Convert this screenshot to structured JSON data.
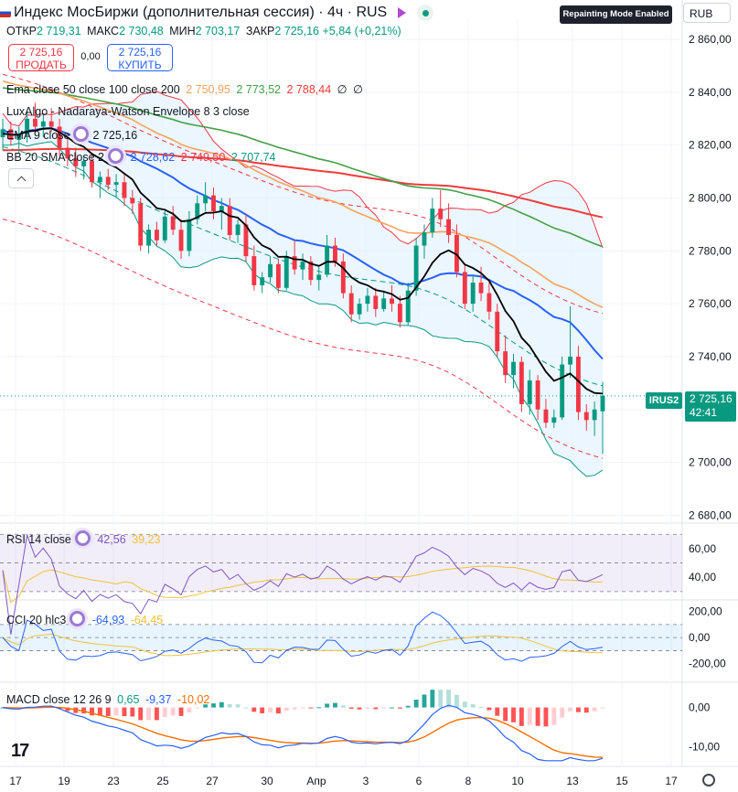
{
  "header": {
    "title": "Индекс МосБиржи (дополнительная сессия) · 4ч · RUS",
    "badge": "Repainting Mode Enabled",
    "currency": "RUB",
    "ohlc": {
      "open_label": "ОТКР",
      "open": "2 719,31",
      "high_label": "МАКС",
      "high": "2 730,48",
      "low_label": "МИН",
      "low": "2 703,17",
      "close_label": "ЗАКР",
      "close": "2 725,16",
      "change": "+5,84 (+0,21%)"
    }
  },
  "trade": {
    "sell_price": "2 725,16",
    "sell_label": "ПРОДАТЬ",
    "spread": "0,00",
    "buy_price": "2 725,16",
    "buy_label": "КУПИТЬ"
  },
  "legends": {
    "ema_multi": {
      "label": "Ema close 50 close 100 close 200",
      "v1": "2 750,95",
      "v2": "2 773,52",
      "v3": "2 788,44",
      "v4": "∅",
      "v5": "∅"
    },
    "luxalgo": {
      "label": "LuxAlgo - Nadaraya-Watson Envelope 8 3 close"
    },
    "ema9": {
      "label": "EMA 9 close",
      "value": "2 725,16"
    },
    "bb": {
      "label": "BB 20 SMA close 2",
      "v1": "2 728,62",
      "v2": "2 749,50",
      "v3": "2 707,74"
    },
    "rsi": {
      "label": "RSI 14 close",
      "v1": "42,56",
      "v2": "39,23"
    },
    "cci": {
      "label": "CCI 20 hlc3",
      "v1": "-64,93",
      "v2": "-64,45"
    },
    "macd": {
      "label": "MACD close 12 26 9",
      "v1": "0,65",
      "v2": "-9,37",
      "v3": "-10,02"
    }
  },
  "price_tag": {
    "symbol": "IRUS2",
    "price": "2 725,16",
    "countdown": "42:41"
  },
  "colors": {
    "up": "#089981",
    "down": "#f23645",
    "ema9": "#000000",
    "ema50": "#f7a25c",
    "ema100": "#43a047",
    "ema200": "#ef3b3b",
    "bb_basis": "#2962ff",
    "bb_band": "#089981",
    "nw_envelope": "#f23645",
    "nw_mid": "#089981",
    "rsi": "#7e57c2",
    "cci": "#2962ff",
    "signal": "#f2c13c",
    "macd": "#2962ff",
    "macd_signal": "#ff6d00"
  },
  "chart_data": {
    "type": "candlestick",
    "timeframe": "4ч",
    "y_ticks": [
      "2 860,00",
      "2 840,00",
      "2 820,00",
      "2 800,00",
      "2 780,00",
      "2 760,00",
      "2 740,00",
      "2 720,00",
      "2 700,00",
      "2 680,00"
    ],
    "ylim": [
      2677,
      2868
    ],
    "x_ticks": [
      "17",
      "19",
      "23",
      "25",
      "27",
      "30",
      "Апр",
      "3",
      "6",
      "8",
      "10",
      "13",
      "15",
      "17"
    ],
    "last_price": 2725.16,
    "candles": [
      [
        2823,
        2830,
        2818,
        2826
      ],
      [
        2826,
        2829,
        2820,
        2822
      ],
      [
        2822,
        2827,
        2817,
        2824
      ],
      [
        2824,
        2833,
        2821,
        2830
      ],
      [
        2830,
        2836,
        2825,
        2827
      ],
      [
        2827,
        2832,
        2823,
        2829
      ],
      [
        2829,
        2834,
        2825,
        2827
      ],
      [
        2827,
        2830,
        2816,
        2819
      ],
      [
        2819,
        2823,
        2812,
        2815
      ],
      [
        2815,
        2819,
        2808,
        2812
      ],
      [
        2812,
        2816,
        2807,
        2814
      ],
      [
        2814,
        2816,
        2804,
        2806
      ],
      [
        2806,
        2810,
        2800,
        2808
      ],
      [
        2808,
        2811,
        2803,
        2805
      ],
      [
        2805,
        2809,
        2800,
        2806
      ],
      [
        2806,
        2809,
        2797,
        2800
      ],
      [
        2800,
        2803,
        2794,
        2798
      ],
      [
        2798,
        2800,
        2780,
        2782
      ],
      [
        2782,
        2790,
        2779,
        2788
      ],
      [
        2788,
        2791,
        2782,
        2784
      ],
      [
        2784,
        2795,
        2783,
        2793
      ],
      [
        2793,
        2797,
        2786,
        2788
      ],
      [
        2788,
        2792,
        2777,
        2780
      ],
      [
        2780,
        2795,
        2778,
        2792
      ],
      [
        2792,
        2801,
        2790,
        2798
      ],
      [
        2798,
        2806,
        2795,
        2801
      ],
      [
        2801,
        2804,
        2792,
        2795
      ],
      [
        2795,
        2800,
        2788,
        2797
      ],
      [
        2797,
        2800,
        2784,
        2786
      ],
      [
        2786,
        2792,
        2783,
        2790
      ],
      [
        2790,
        2794,
        2776,
        2778
      ],
      [
        2778,
        2782,
        2765,
        2767
      ],
      [
        2767,
        2772,
        2764,
        2770
      ],
      [
        2770,
        2778,
        2768,
        2775
      ],
      [
        2775,
        2777,
        2764,
        2766
      ],
      [
        2766,
        2780,
        2765,
        2778
      ],
      [
        2778,
        2784,
        2771,
        2773
      ],
      [
        2773,
        2779,
        2769,
        2776
      ],
      [
        2776,
        2778,
        2767,
        2769
      ],
      [
        2769,
        2774,
        2765,
        2771
      ],
      [
        2771,
        2786,
        2770,
        2782
      ],
      [
        2782,
        2785,
        2774,
        2776
      ],
      [
        2776,
        2779,
        2762,
        2764
      ],
      [
        2764,
        2767,
        2753,
        2756
      ],
      [
        2756,
        2762,
        2754,
        2760
      ],
      [
        2760,
        2766,
        2757,
        2763
      ],
      [
        2763,
        2766,
        2755,
        2758
      ],
      [
        2758,
        2765,
        2757,
        2762
      ],
      [
        2762,
        2767,
        2757,
        2760
      ],
      [
        2760,
        2763,
        2751,
        2753
      ],
      [
        2753,
        2768,
        2752,
        2765
      ],
      [
        2765,
        2785,
        2763,
        2782
      ],
      [
        2782,
        2790,
        2777,
        2787
      ],
      [
        2787,
        2800,
        2785,
        2796
      ],
      [
        2796,
        2803,
        2789,
        2792
      ],
      [
        2792,
        2798,
        2783,
        2786
      ],
      [
        2786,
        2790,
        2770,
        2772
      ],
      [
        2772,
        2775,
        2758,
        2760
      ],
      [
        2760,
        2771,
        2757,
        2768
      ],
      [
        2768,
        2774,
        2761,
        2764
      ],
      [
        2764,
        2768,
        2754,
        2757
      ],
      [
        2757,
        2760,
        2740,
        2742
      ],
      [
        2742,
        2748,
        2730,
        2733
      ],
      [
        2733,
        2741,
        2728,
        2738
      ],
      [
        2738,
        2740,
        2719,
        2722
      ],
      [
        2722,
        2735,
        2718,
        2731
      ],
      [
        2731,
        2733,
        2716,
        2720
      ],
      [
        2720,
        2724,
        2713,
        2715
      ],
      [
        2715,
        2720,
        2713,
        2717
      ],
      [
        2717,
        2740,
        2716,
        2737
      ],
      [
        2737,
        2759,
        2732,
        2740
      ],
      [
        2740,
        2744,
        2716,
        2719
      ],
      [
        2719,
        2722,
        2712,
        2716
      ],
      [
        2716,
        2723,
        2710,
        2720
      ],
      [
        2719.31,
        2730.48,
        2703.17,
        2725.16
      ]
    ]
  },
  "rsi_pane": {
    "ticks": [
      "60,00",
      "40,00"
    ],
    "ylim": [
      28,
      74
    ],
    "band": [
      30,
      70
    ],
    "mid": 50
  },
  "cci_pane": {
    "ticks": [
      "200,00",
      "0,00",
      "-200,00"
    ],
    "ylim": [
      -300,
      260
    ],
    "band": [
      -100,
      100
    ]
  },
  "macd_pane": {
    "ticks": [
      "0,00",
      "-10,00"
    ],
    "ylim": [
      -14,
      5
    ]
  }
}
